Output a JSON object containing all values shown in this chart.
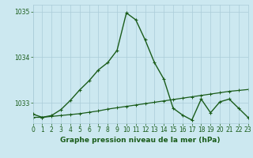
{
  "title": "Graphe pression niveau de la mer (hPa)",
  "bg_color": "#cce8f0",
  "grid_color": "#aaccd8",
  "line_color_main": "#1a5c1a",
  "line_color_trend": "#1a5c1a",
  "xlim": [
    0,
    23
  ],
  "ylim": [
    1032.55,
    1035.15
  ],
  "yticks": [
    1033,
    1034,
    1035
  ],
  "xticks": [
    0,
    1,
    2,
    3,
    4,
    5,
    6,
    7,
    8,
    9,
    10,
    11,
    12,
    13,
    14,
    15,
    16,
    17,
    18,
    19,
    20,
    21,
    22,
    23
  ],
  "series1_x": [
    0,
    1,
    2,
    3,
    4,
    5,
    6,
    7,
    8,
    9,
    10,
    11,
    12,
    13,
    14,
    15,
    16,
    17,
    18,
    19,
    20,
    21,
    22,
    23
  ],
  "series1_y": [
    1032.75,
    1032.68,
    1032.72,
    1032.85,
    1033.05,
    1033.28,
    1033.48,
    1033.72,
    1033.88,
    1034.15,
    1034.97,
    1034.82,
    1034.38,
    1033.88,
    1033.52,
    1032.88,
    1032.73,
    1032.62,
    1033.08,
    1032.78,
    1033.02,
    1033.08,
    1032.88,
    1032.68
  ],
  "series2_x": [
    0,
    1,
    2,
    3,
    4,
    5,
    6,
    7,
    8,
    9,
    10,
    11,
    12,
    13,
    14,
    15,
    16,
    17,
    18,
    19,
    20,
    21,
    22,
    23
  ],
  "series2_y": [
    1032.68,
    1032.68,
    1032.7,
    1032.72,
    1032.74,
    1032.76,
    1032.79,
    1032.82,
    1032.86,
    1032.89,
    1032.92,
    1032.95,
    1032.98,
    1033.01,
    1033.04,
    1033.07,
    1033.1,
    1033.13,
    1033.16,
    1033.19,
    1033.22,
    1033.25,
    1033.27,
    1033.29
  ],
  "tick_fontsize": 5.5,
  "title_fontsize": 6.5
}
